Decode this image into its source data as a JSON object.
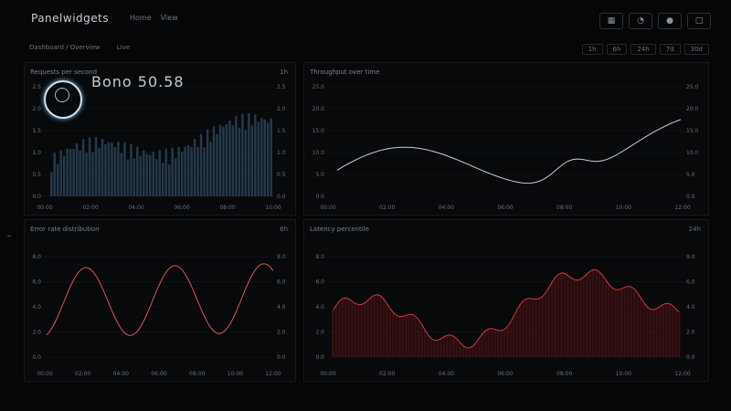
{
  "app": {
    "title": "Panelwidgets",
    "tabs": [
      "Home",
      "View"
    ]
  },
  "subbar": {
    "left_items": [
      "Dashboard / Overview",
      "Live"
    ],
    "right_items": [
      "1h",
      "6h",
      "24h",
      "7d",
      "30d"
    ]
  },
  "panels": [
    {
      "title": "Requests per second",
      "options": "1h",
      "readout": "Bono 50.58",
      "y_ticks": [
        "0.0",
        "0.5",
        "1.0",
        "1.5",
        "2.0",
        "2.5"
      ],
      "x_ticks": [
        "00:00",
        "02:00",
        "04:00",
        "06:00",
        "08:00",
        "10:00"
      ],
      "accent": "#5a7fa0"
    },
    {
      "title": "Throughput over time",
      "options": "",
      "y_ticks": [
        "0.0",
        "5.0",
        "10.0",
        "15.0",
        "20.0",
        "25.0"
      ],
      "x_ticks": [
        "00:00",
        "02:00",
        "04:00",
        "06:00",
        "08:00",
        "10:00",
        "12:00"
      ],
      "accent": "#c7d0d8"
    },
    {
      "title": "Error rate distribution",
      "options": "6h",
      "y_ticks": [
        "0.0",
        "2.0",
        "4.0",
        "6.0",
        "8.0"
      ],
      "x_ticks": [
        "00:00",
        "02:00",
        "04:00",
        "06:00",
        "08:00",
        "10:00",
        "12:00"
      ],
      "accent": "#e05550"
    },
    {
      "title": "Latency percentile",
      "options": "24h",
      "y_ticks": [
        "0.0",
        "2.0",
        "4.0",
        "6.0",
        "8.0"
      ],
      "x_ticks": [
        "00:00",
        "02:00",
        "04:00",
        "06:00",
        "08:00",
        "10:00",
        "12:00"
      ],
      "accent": "#d23a3a"
    }
  ]
}
